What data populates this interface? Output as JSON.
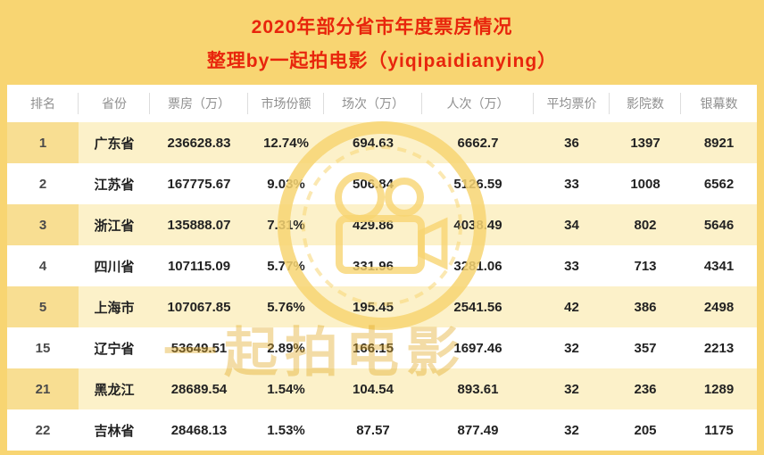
{
  "title": {
    "line1": "2020年部分省市年度票房情况",
    "line2": "整理by一起拍电影（yiqipaidianying）"
  },
  "watermark": {
    "text": "一起拍电影"
  },
  "colors": {
    "background": "#F8D572",
    "title_red": "#E8250C",
    "row_odd": "#FCF1C9",
    "row_even": "#FFFFFF",
    "rank_highlight": "#F8DE92",
    "header_text": "#8F8F8F"
  },
  "chart_data": {
    "type": "table",
    "title": "2020年部分省市年度票房情况",
    "columns": [
      "排名",
      "省份",
      "票房（万）",
      "市场份额",
      "场次（万）",
      "人次（万）",
      "平均票价",
      "影院数",
      "银幕数"
    ],
    "rows": [
      [
        "1",
        "广东省",
        "236628.83",
        "12.74%",
        "694.63",
        "6662.7",
        "36",
        "1397",
        "8921"
      ],
      [
        "2",
        "江苏省",
        "167775.67",
        "9.03%",
        "506.84",
        "5126.59",
        "33",
        "1008",
        "6562"
      ],
      [
        "3",
        "浙江省",
        "135888.07",
        "7.31%",
        "429.86",
        "4038.49",
        "34",
        "802",
        "5646"
      ],
      [
        "4",
        "四川省",
        "107115.09",
        "5.77%",
        "331.96",
        "3281.06",
        "33",
        "713",
        "4341"
      ],
      [
        "5",
        "上海市",
        "107067.85",
        "5.76%",
        "195.45",
        "2541.56",
        "42",
        "386",
        "2498"
      ],
      [
        "15",
        "辽宁省",
        "53649.51",
        "2.89%",
        "166.15",
        "1697.46",
        "32",
        "357",
        "2213"
      ],
      [
        "21",
        "黑龙江",
        "28689.54",
        "1.54%",
        "104.54",
        "893.61",
        "32",
        "236",
        "1289"
      ],
      [
        "22",
        "吉林省",
        "28468.13",
        "1.53%",
        "87.57",
        "877.49",
        "32",
        "205",
        "1175"
      ]
    ]
  }
}
